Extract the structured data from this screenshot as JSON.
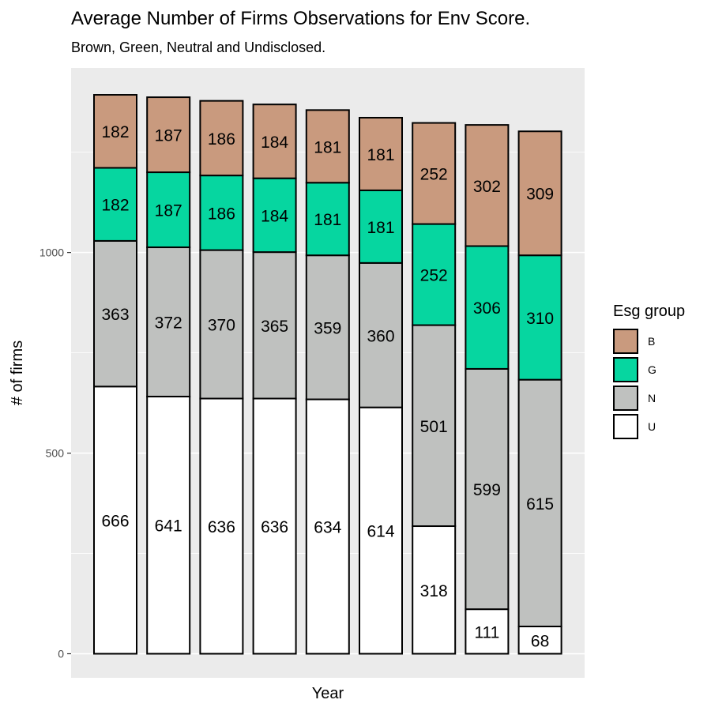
{
  "chart_data": {
    "type": "bar",
    "stacked": true,
    "title": "Average Number of Firms Observations for Env Score.",
    "subtitle": "Brown, Green, Neutral and Undisclosed.",
    "xlabel": "Year",
    "ylabel": "# of firms",
    "ylim": [
      -60,
      1460
    ],
    "yticks": [
      0,
      500,
      1000
    ],
    "grid": true,
    "legend_title": "Esg group",
    "legend_position": "right",
    "categories": [
      "",
      "",
      "",
      "",
      "",
      "",
      "",
      "",
      ""
    ],
    "series": [
      {
        "name": "U",
        "color": "#ffffff",
        "values": [
          666,
          641,
          636,
          636,
          634,
          614,
          318,
          111,
          68
        ]
      },
      {
        "name": "N",
        "color": "#bfc1bf",
        "values": [
          363,
          372,
          370,
          365,
          359,
          360,
          501,
          599,
          615
        ]
      },
      {
        "name": "G",
        "color": "#06d6a0",
        "values": [
          182,
          187,
          186,
          184,
          181,
          181,
          252,
          306,
          310
        ]
      },
      {
        "name": "B",
        "color": "#c99a7e",
        "values": [
          182,
          187,
          186,
          184,
          181,
          181,
          252,
          302,
          309
        ]
      }
    ],
    "legend_order": [
      "B",
      "G",
      "N",
      "U"
    ]
  }
}
